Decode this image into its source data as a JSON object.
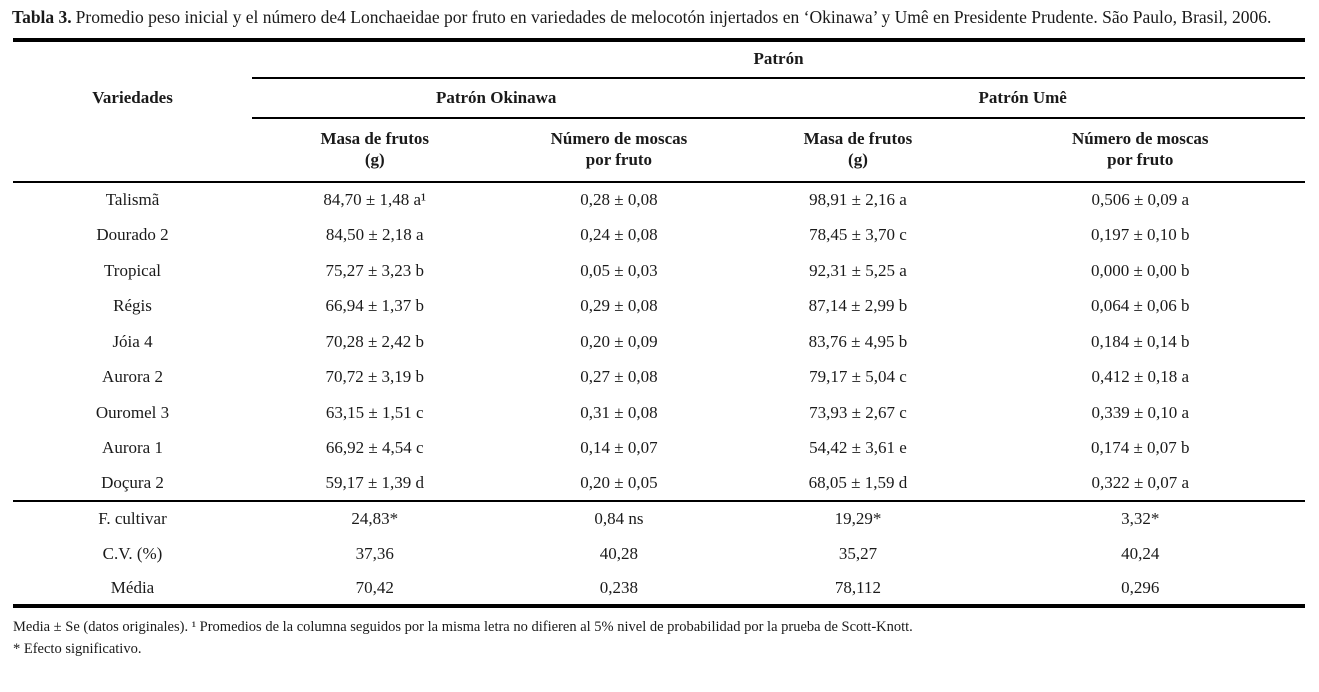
{
  "colors": {
    "text": "#1a1a1a",
    "rule": "#000000",
    "background": "#ffffff"
  },
  "title": {
    "label": "Tabla 3.",
    "text": "Promedio peso inicial y el número de4 Lonchaeidae por fruto en variedades de melocotón injertados en ‘Okinawa’ y Umê en Presidente Prudente. São Paulo, Brasil, 2006."
  },
  "table": {
    "group_header": "Patrón",
    "col1_header": "Variedades",
    "subgroups": [
      {
        "label": "Patrón Okinawa"
      },
      {
        "label": "Patrón Umê"
      }
    ],
    "measures": [
      {
        "line1": "Masa de frutos",
        "line2": "(g)"
      },
      {
        "line1": "Número de moscas",
        "line2": "por fruto"
      },
      {
        "line1": "Masa de frutos",
        "line2": "(g)"
      },
      {
        "line1": "Número de moscas",
        "line2": "por fruto"
      }
    ],
    "rows": [
      {
        "name": "Talismã",
        "values": [
          "84,70 ± 1,48 a¹",
          "0,28 ± 0,08",
          "98,91 ± 2,16 a",
          "0,506 ± 0,09 a"
        ]
      },
      {
        "name": "Dourado 2",
        "values": [
          "84,50 ± 2,18 a",
          "0,24 ± 0,08",
          "78,45 ± 3,70 c",
          "0,197 ± 0,10 b"
        ]
      },
      {
        "name": "Tropical",
        "values": [
          "75,27 ± 3,23 b",
          "0,05 ± 0,03",
          "92,31 ± 5,25 a",
          "0,000 ± 0,00 b"
        ]
      },
      {
        "name": "Régis",
        "values": [
          "66,94 ± 1,37 b",
          "0,29 ± 0,08",
          "87,14 ± 2,99 b",
          "0,064 ± 0,06 b"
        ]
      },
      {
        "name": "Jóia 4",
        "values": [
          "70,28 ± 2,42 b",
          "0,20 ± 0,09",
          "83,76 ± 4,95 b",
          "0,184 ± 0,14 b"
        ]
      },
      {
        "name": "Aurora 2",
        "values": [
          "70,72 ± 3,19 b",
          "0,27 ± 0,08",
          "79,17 ± 5,04 c",
          "0,412 ± 0,18 a"
        ]
      },
      {
        "name": "Ouromel 3",
        "values": [
          "63,15 ± 1,51 c",
          "0,31 ± 0,08",
          "73,93 ± 2,67 c",
          "0,339 ± 0,10 a"
        ]
      },
      {
        "name": "Aurora 1",
        "values": [
          "66,92 ± 4,54 c",
          "0,14 ± 0,07",
          "54,42 ± 3,61 e",
          "0,174 ± 0,07 b"
        ]
      },
      {
        "name": "Doçura 2",
        "values": [
          "59,17 ± 1,39 d",
          "0,20 ± 0,05",
          "68,05 ± 1,59 d",
          "0,322 ± 0,07 a"
        ]
      }
    ],
    "summary_rows": [
      {
        "name": "F. cultivar",
        "values": [
          "24,83*",
          "0,84 ns",
          "19,29*",
          "3,32*"
        ]
      },
      {
        "name": "C.V. (%)",
        "values": [
          "37,36",
          "40,28",
          "35,27",
          "40,24"
        ]
      },
      {
        "name": "Média",
        "values": [
          "70,42",
          "0,238",
          "78,112",
          "0,296"
        ]
      }
    ]
  },
  "footnotes": {
    "line1": "Media ± Se (datos originales). ¹ Promedios de la columna seguidos por la misma letra no difieren al 5% nivel de probabilidad por la prueba de Scott-Knott.",
    "line2": "* Efecto significativo."
  }
}
